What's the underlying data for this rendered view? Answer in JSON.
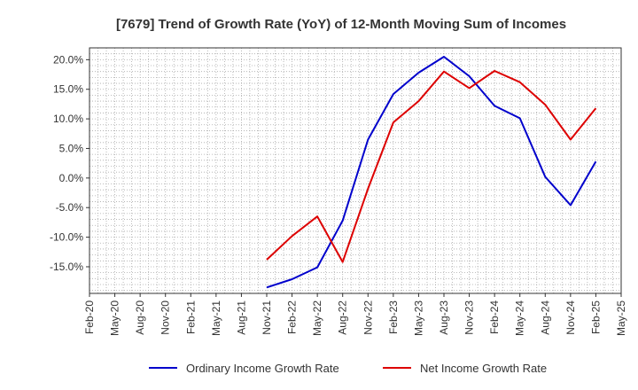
{
  "chart_data": {
    "type": "line",
    "title": "[7679]  Trend of Growth Rate (YoY) of 12-Month Moving Sum of Incomes",
    "xlabel": "",
    "ylabel": "",
    "x_ticks": [
      "Feb-20",
      "May-20",
      "Aug-20",
      "Nov-20",
      "Feb-21",
      "May-21",
      "Aug-21",
      "Nov-21",
      "Feb-22",
      "May-22",
      "Aug-22",
      "Nov-22",
      "Feb-23",
      "May-23",
      "Aug-23",
      "Nov-23",
      "Feb-24",
      "May-24",
      "Aug-24",
      "Nov-24",
      "Feb-25",
      "May-25"
    ],
    "y_ticks": [
      "20.0%",
      "15.0%",
      "10.0%",
      "5.0%",
      "0.0%",
      "-5.0%",
      "-10.0%",
      "-15.0%"
    ],
    "y_tick_values": [
      20,
      15,
      10,
      5,
      0,
      -5,
      -10,
      -15
    ],
    "ylim": [
      -19.5,
      22
    ],
    "grid": true,
    "legend_position": "bottom",
    "series": [
      {
        "name": "Ordinary Income Growth Rate",
        "color": "#0000cc",
        "x": [
          "Nov-21",
          "Feb-22",
          "May-22",
          "Aug-22",
          "Nov-22",
          "Feb-23",
          "May-23",
          "Aug-23",
          "Nov-23",
          "Feb-24",
          "May-24",
          "Aug-24",
          "Nov-24",
          "Feb-25"
        ],
        "values": [
          -18.5,
          -17.1,
          -15.1,
          -7.2,
          6.5,
          14.2,
          17.8,
          20.5,
          17.2,
          12.2,
          10.1,
          0.2,
          -4.6,
          2.8
        ]
      },
      {
        "name": "Net Income Growth Rate",
        "color": "#dd0000",
        "x": [
          "Nov-21",
          "Feb-22",
          "May-22",
          "Aug-22",
          "Nov-22",
          "Feb-23",
          "May-23",
          "Aug-23",
          "Nov-23",
          "Feb-24",
          "May-24",
          "Aug-24",
          "Nov-24",
          "Feb-25"
        ],
        "values": [
          -13.8,
          -9.8,
          -6.5,
          -14.2,
          -1.8,
          9.4,
          13.0,
          18.0,
          15.2,
          18.1,
          16.2,
          12.4,
          6.5,
          11.8
        ]
      }
    ]
  }
}
